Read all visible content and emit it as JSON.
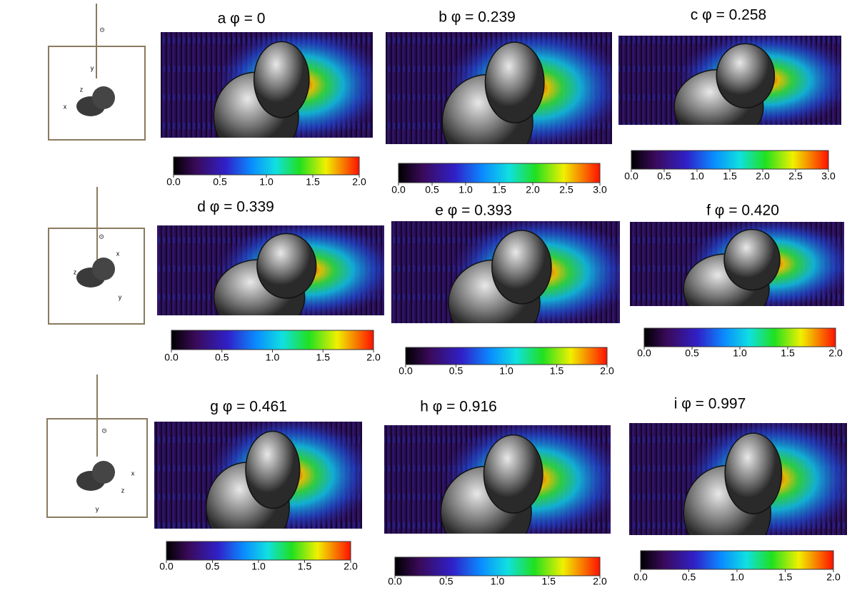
{
  "figure": {
    "panels": [
      {
        "title": "a φ = 0",
        "colorbar_ticks": [
          "0.0",
          "0.5",
          "1.0",
          "1.5",
          "2.0"
        ]
      },
      {
        "title": "b  φ = 0.239",
        "colorbar_ticks": [
          "0.0",
          "0.5",
          "1.0",
          "1.5",
          "2.0",
          "2.5",
          "3.0"
        ]
      },
      {
        "title": "c  φ = 0.258",
        "colorbar_ticks": [
          "0.0",
          "0.5",
          "1.0",
          "1.5",
          "2.0",
          "2.5",
          "3.0"
        ]
      },
      {
        "title": "d φ = 0.339",
        "colorbar_ticks": [
          "0.0",
          "0.5",
          "1.0",
          "1.5",
          "2.0"
        ]
      },
      {
        "title": "e φ = 0.393",
        "colorbar_ticks": [
          "0.0",
          "0.5",
          "1.0",
          "1.5",
          "2.0"
        ]
      },
      {
        "title": "f φ = 0.420",
        "colorbar_ticks": [
          "0.0",
          "0.5",
          "1.0",
          "1.5",
          "2.0"
        ]
      },
      {
        "title": "g φ = 0.461",
        "colorbar_ticks": [
          "0.0",
          "0.5",
          "1.0",
          "1.5",
          "2.0"
        ]
      },
      {
        "title": "h φ = 0.916",
        "colorbar_ticks": [
          "0.0",
          "0.5",
          "1.0",
          "1.5",
          "2.0"
        ]
      },
      {
        "title": "i φ = 0.997",
        "colorbar_ticks": [
          "0.0",
          "0.5",
          "1.0",
          "1.5",
          "2.0"
        ]
      }
    ],
    "orientations": [
      {
        "sun": "⊙",
        "axes": [
          "y",
          "z",
          "x"
        ]
      },
      {
        "sun": "⊙",
        "axes": [
          "x",
          "z",
          "y"
        ]
      },
      {
        "sun": "⊙",
        "axes": [
          "x",
          "z",
          "y"
        ]
      }
    ]
  }
}
